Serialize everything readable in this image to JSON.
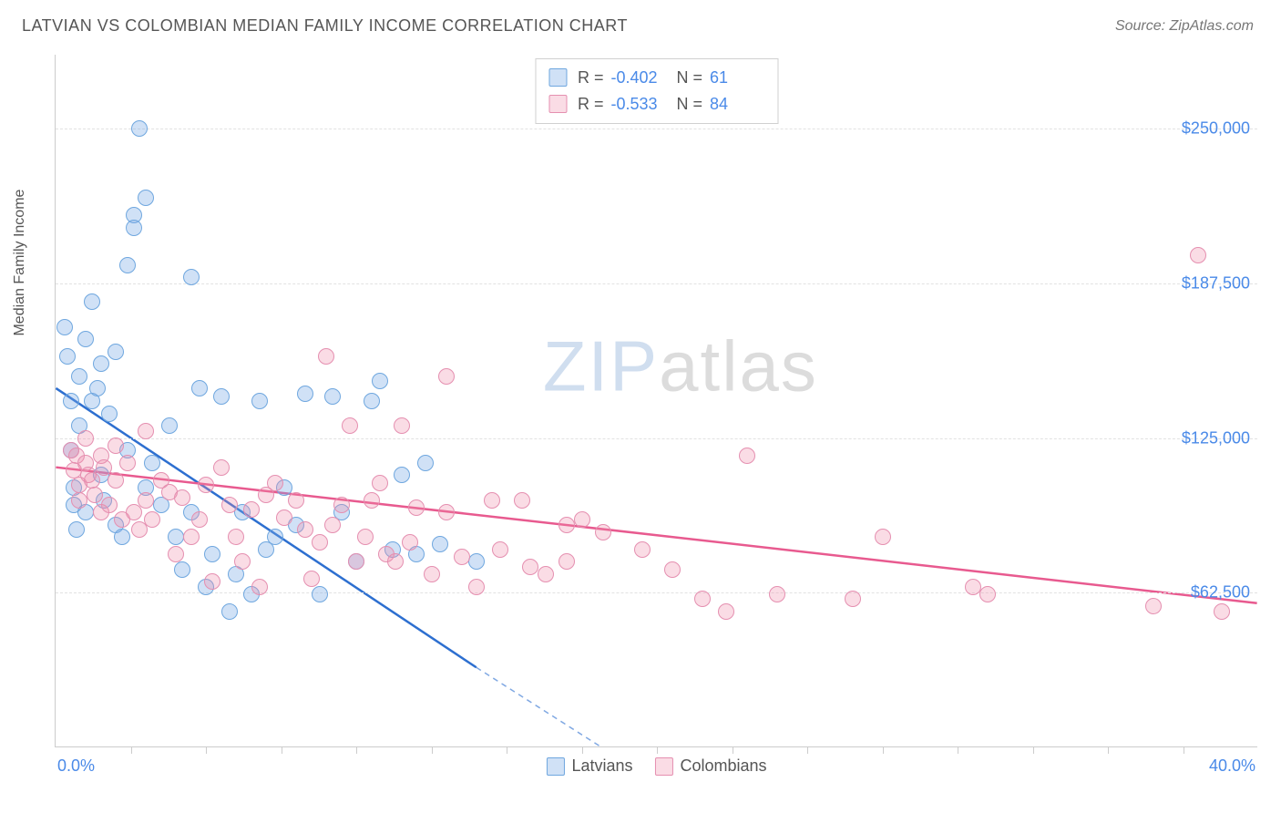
{
  "header": {
    "title": "LATVIAN VS COLOMBIAN MEDIAN FAMILY INCOME CORRELATION CHART",
    "source": "Source: ZipAtlas.com"
  },
  "chart": {
    "type": "scatter",
    "ylabel": "Median Family Income",
    "xlim": [
      0,
      40
    ],
    "ylim": [
      0,
      280000
    ],
    "xtick_step": 2.5,
    "xtick_labels": {
      "min": "0.0%",
      "max": "40.0%"
    },
    "ytick_values": [
      62500,
      125000,
      187500,
      250000
    ],
    "ytick_labels": [
      "$62,500",
      "$125,000",
      "$187,500",
      "$250,000"
    ],
    "grid_color": "#e2e2e2",
    "axis_color": "#cccccc",
    "label_color": "#555555",
    "tick_label_color": "#4a8ae8",
    "tick_label_fontsize": 18,
    "background_color": "#ffffff",
    "watermark": {
      "text_a": "ZIP",
      "text_b": "atlas",
      "color_a": "rgba(120,160,210,0.35)",
      "color_b": "rgba(140,140,140,0.3)",
      "fontsize": 78
    },
    "series": [
      {
        "name": "Latvians",
        "color_fill": "rgba(120,170,230,0.35)",
        "color_stroke": "#6fa7df",
        "trend_color": "#2d6fd0",
        "trend_width": 2.5,
        "marker_radius": 9,
        "R": "-0.402",
        "N": "61",
        "trend": {
          "x1": 0,
          "y1": 145000,
          "x2_solid": 14,
          "y2_solid": 32000,
          "x2_dash": 22,
          "y2_dash": -30000
        },
        "points": [
          [
            0.3,
            170000
          ],
          [
            0.4,
            158000
          ],
          [
            0.5,
            140000
          ],
          [
            0.5,
            120000
          ],
          [
            0.6,
            105000
          ],
          [
            0.6,
            98000
          ],
          [
            0.7,
            88000
          ],
          [
            0.8,
            150000
          ],
          [
            0.8,
            130000
          ],
          [
            1.0,
            165000
          ],
          [
            1.0,
            95000
          ],
          [
            1.2,
            180000
          ],
          [
            1.2,
            140000
          ],
          [
            1.4,
            145000
          ],
          [
            1.5,
            155000
          ],
          [
            1.5,
            110000
          ],
          [
            1.6,
            100000
          ],
          [
            1.8,
            135000
          ],
          [
            2.0,
            160000
          ],
          [
            2.0,
            90000
          ],
          [
            2.2,
            85000
          ],
          [
            2.4,
            195000
          ],
          [
            2.4,
            120000
          ],
          [
            2.6,
            215000
          ],
          [
            2.6,
            210000
          ],
          [
            2.8,
            250000
          ],
          [
            3.0,
            222000
          ],
          [
            3.0,
            105000
          ],
          [
            3.2,
            115000
          ],
          [
            3.5,
            98000
          ],
          [
            3.8,
            130000
          ],
          [
            4.0,
            85000
          ],
          [
            4.2,
            72000
          ],
          [
            4.5,
            190000
          ],
          [
            4.5,
            95000
          ],
          [
            4.8,
            145000
          ],
          [
            5.0,
            65000
          ],
          [
            5.2,
            78000
          ],
          [
            5.5,
            142000
          ],
          [
            5.8,
            55000
          ],
          [
            6.0,
            70000
          ],
          [
            6.2,
            95000
          ],
          [
            6.5,
            62000
          ],
          [
            6.8,
            140000
          ],
          [
            7.0,
            80000
          ],
          [
            7.3,
            85000
          ],
          [
            7.6,
            105000
          ],
          [
            8.0,
            90000
          ],
          [
            8.3,
            143000
          ],
          [
            8.8,
            62000
          ],
          [
            9.2,
            142000
          ],
          [
            9.5,
            95000
          ],
          [
            10.0,
            75000
          ],
          [
            10.5,
            140000
          ],
          [
            10.8,
            148000
          ],
          [
            11.2,
            80000
          ],
          [
            11.5,
            110000
          ],
          [
            12.0,
            78000
          ],
          [
            12.3,
            115000
          ],
          [
            12.8,
            82000
          ],
          [
            14.0,
            75000
          ]
        ]
      },
      {
        "name": "Colombians",
        "color_fill": "rgba(240,140,170,0.3)",
        "color_stroke": "#e58fb0",
        "trend_color": "#e85a8f",
        "trend_width": 2.5,
        "marker_radius": 9,
        "R": "-0.533",
        "N": "84",
        "trend": {
          "x1": 0,
          "y1": 113000,
          "x2_solid": 40,
          "y2_solid": 58000,
          "x2_dash": 40,
          "y2_dash": 58000
        },
        "points": [
          [
            0.5,
            120000
          ],
          [
            0.6,
            112000
          ],
          [
            0.7,
            118000
          ],
          [
            0.8,
            106000
          ],
          [
            0.8,
            100000
          ],
          [
            1.0,
            115000
          ],
          [
            1.0,
            125000
          ],
          [
            1.1,
            110000
          ],
          [
            1.2,
            108000
          ],
          [
            1.3,
            102000
          ],
          [
            1.5,
            118000
          ],
          [
            1.5,
            95000
          ],
          [
            1.6,
            113000
          ],
          [
            1.8,
            98000
          ],
          [
            2.0,
            122000
          ],
          [
            2.0,
            108000
          ],
          [
            2.2,
            92000
          ],
          [
            2.4,
            115000
          ],
          [
            2.6,
            95000
          ],
          [
            2.8,
            88000
          ],
          [
            3.0,
            128000
          ],
          [
            3.0,
            100000
          ],
          [
            3.2,
            92000
          ],
          [
            3.5,
            108000
          ],
          [
            3.8,
            103000
          ],
          [
            4.0,
            78000
          ],
          [
            4.2,
            101000
          ],
          [
            4.5,
            85000
          ],
          [
            4.8,
            92000
          ],
          [
            5.0,
            106000
          ],
          [
            5.2,
            67000
          ],
          [
            5.5,
            113000
          ],
          [
            5.8,
            98000
          ],
          [
            6.0,
            85000
          ],
          [
            6.2,
            75000
          ],
          [
            6.5,
            96000
          ],
          [
            6.8,
            65000
          ],
          [
            7.0,
            102000
          ],
          [
            7.3,
            107000
          ],
          [
            7.6,
            93000
          ],
          [
            8.0,
            100000
          ],
          [
            8.3,
            88000
          ],
          [
            8.5,
            68000
          ],
          [
            8.8,
            83000
          ],
          [
            9.0,
            158000
          ],
          [
            9.2,
            90000
          ],
          [
            9.5,
            98000
          ],
          [
            9.8,
            130000
          ],
          [
            10.0,
            75000
          ],
          [
            10.3,
            85000
          ],
          [
            10.5,
            100000
          ],
          [
            10.8,
            107000
          ],
          [
            11.0,
            78000
          ],
          [
            11.3,
            75000
          ],
          [
            11.5,
            130000
          ],
          [
            11.8,
            83000
          ],
          [
            12.0,
            97000
          ],
          [
            12.5,
            70000
          ],
          [
            13.0,
            150000
          ],
          [
            13.0,
            95000
          ],
          [
            13.5,
            77000
          ],
          [
            14.0,
            65000
          ],
          [
            14.5,
            100000
          ],
          [
            14.8,
            80000
          ],
          [
            15.5,
            100000
          ],
          [
            15.8,
            73000
          ],
          [
            16.3,
            70000
          ],
          [
            17.0,
            90000
          ],
          [
            17.0,
            75000
          ],
          [
            17.5,
            92000
          ],
          [
            18.2,
            87000
          ],
          [
            19.5,
            80000
          ],
          [
            20.5,
            72000
          ],
          [
            21.5,
            60000
          ],
          [
            22.3,
            55000
          ],
          [
            23.0,
            118000
          ],
          [
            24.0,
            62000
          ],
          [
            26.5,
            60000
          ],
          [
            27.5,
            85000
          ],
          [
            30.5,
            65000
          ],
          [
            31.0,
            62000
          ],
          [
            36.5,
            57000
          ],
          [
            38.0,
            199000
          ],
          [
            38.8,
            55000
          ]
        ]
      }
    ],
    "legend_bottom": [
      {
        "label": "Latvians",
        "swatch_fill": "rgba(120,170,230,0.35)",
        "swatch_stroke": "#6fa7df"
      },
      {
        "label": "Colombians",
        "swatch_fill": "rgba(240,140,170,0.3)",
        "swatch_stroke": "#e58fb0"
      }
    ]
  }
}
